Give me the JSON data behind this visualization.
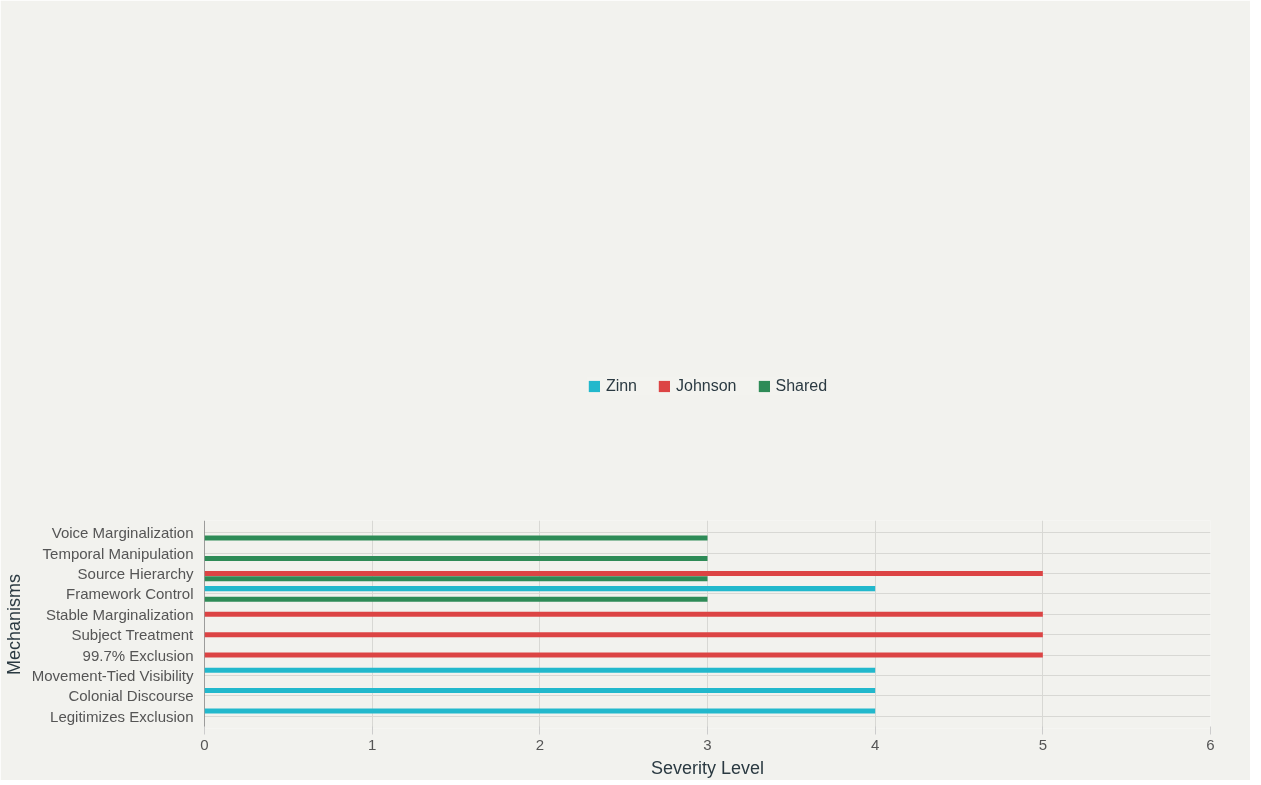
{
  "chart_data": {
    "type": "bar",
    "orientation": "horizontal",
    "xlabel": "Severity Level",
    "ylabel": "Mechanisms",
    "categories": [
      "Voice Marginalization",
      "Temporal Manipulation",
      "Source Hierarchy",
      "Framework Control",
      "Stable Marginalization",
      "Subject Treatment",
      "99.7% Exclusion",
      "Movement-Tied Visibility",
      "Colonial Discourse",
      "Legitimizes Exclusion"
    ],
    "series": [
      {
        "name": "Zinn",
        "color": "#22b8cc",
        "values": [
          null,
          null,
          null,
          4,
          null,
          null,
          null,
          4,
          4,
          4
        ]
      },
      {
        "name": "Johnson",
        "color": "#dc4444",
        "values": [
          null,
          null,
          5,
          null,
          5,
          5,
          5,
          null,
          null,
          null
        ]
      },
      {
        "name": "Shared",
        "color": "#2e8b57",
        "values": [
          3,
          3,
          3,
          3,
          null,
          null,
          null,
          null,
          null,
          null
        ]
      }
    ],
    "xlim": [
      0,
      6
    ],
    "xticks": [
      0,
      1,
      2,
      3,
      4,
      5,
      6
    ],
    "grid": true,
    "legend": "top"
  }
}
